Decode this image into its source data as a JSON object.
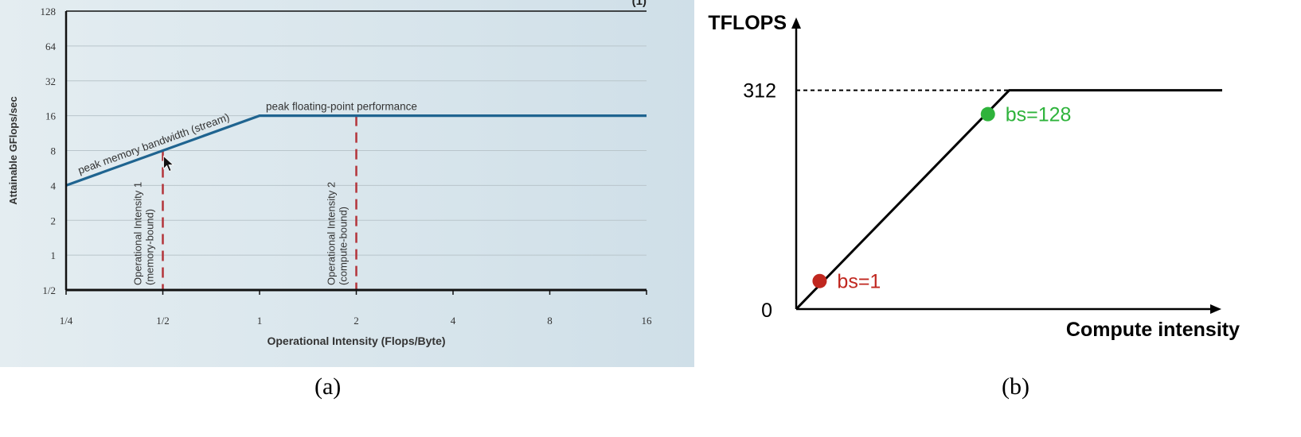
{
  "chart_data": [
    {
      "type": "line",
      "panel_label": "(a)",
      "corner_mark": "(1)",
      "scale": "log2",
      "ylabel": "Attainable GFlops/sec",
      "xlabel": "Operational Intensity (Flops/Byte)",
      "x_ticks": [
        {
          "label": "1/4",
          "value": 0.25
        },
        {
          "label": "1/2",
          "value": 0.5
        },
        {
          "label": "1",
          "value": 1
        },
        {
          "label": "2",
          "value": 2
        },
        {
          "label": "4",
          "value": 4
        },
        {
          "label": "8",
          "value": 8
        },
        {
          "label": "16",
          "value": 16
        }
      ],
      "y_ticks": [
        {
          "label": "1/2",
          "value": 0.5
        },
        {
          "label": "1",
          "value": 1
        },
        {
          "label": "2",
          "value": 2
        },
        {
          "label": "4",
          "value": 4
        },
        {
          "label": "8",
          "value": 8
        },
        {
          "label": "16",
          "value": 16
        },
        {
          "label": "32",
          "value": 32
        },
        {
          "label": "64",
          "value": 64
        },
        {
          "label": "128",
          "value": 128
        }
      ],
      "xlim": [
        0.25,
        16
      ],
      "ylim": [
        0.5,
        128
      ],
      "grid": true,
      "roofline": {
        "x": [
          0.25,
          1,
          16
        ],
        "y": [
          4,
          16,
          16
        ]
      },
      "segment_labels": {
        "memory": "peak memory bandwidth (stream)",
        "compute": "peak floating-point performance"
      },
      "markers": [
        {
          "x": 0.5,
          "top": 8,
          "line1": "Operational Intensity 1",
          "line2": "(memory-bound)"
        },
        {
          "x": 2,
          "top": 16,
          "line1": "Operational Intensity 2",
          "line2": "(compute-bound)"
        }
      ],
      "colors": {
        "background": "#e4edf1",
        "roofline": "#1f6490",
        "marker": "#b3343a",
        "grid": "#b9c5cb",
        "text": "#333333"
      }
    },
    {
      "type": "line",
      "panel_label": "(b)",
      "ylabel": "TFLOPS",
      "xlabel": "Compute intensity",
      "y_tick_zero": "0",
      "peak_label": "312",
      "peak_value": 312,
      "ylim": [
        0,
        400
      ],
      "roofline": {
        "x": [
          0,
          0.5,
          1
        ],
        "y": [
          0,
          312,
          312
        ]
      },
      "points": [
        {
          "label": "bs=1",
          "x": 0.055,
          "y": 40,
          "color": "#c0271f"
        },
        {
          "label": "bs=128",
          "x": 0.45,
          "y": 278,
          "color": "#2eb33b"
        }
      ]
    }
  ]
}
